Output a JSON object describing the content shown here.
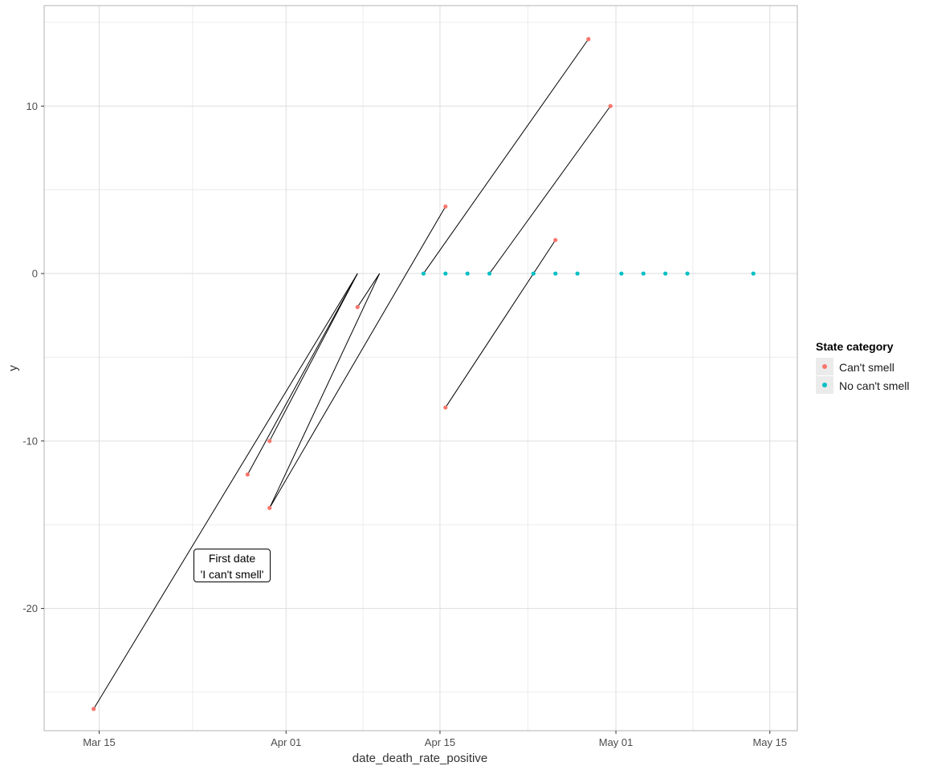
{
  "chart_data": {
    "type": "scatter",
    "xlabel": "date_death_rate_positive",
    "ylabel": "y",
    "x_ticks": [
      {
        "day": 75,
        "label": "Mar 15"
      },
      {
        "day": 92,
        "label": "Apr 01"
      },
      {
        "day": 106,
        "label": "Apr 15"
      },
      {
        "day": 122,
        "label": "May 01"
      },
      {
        "day": 136,
        "label": "May 15"
      }
    ],
    "y_ticks": [
      {
        "value": 10,
        "label": "10"
      },
      {
        "value": 0,
        "label": "0"
      },
      {
        "value": -10,
        "label": "-10"
      },
      {
        "value": -20,
        "label": "-20"
      }
    ],
    "xlim_day": [
      70,
      138.5
    ],
    "ylim": [
      -27.3,
      16.0
    ],
    "legend": {
      "title": "State category",
      "items": [
        {
          "label": "Can't smell",
          "color": "#F8766D"
        },
        {
          "label": "No can't smell",
          "color": "#00BFC4"
        }
      ]
    },
    "annotation": {
      "line1": "First date",
      "line2": "'I can't smell'"
    },
    "series": [
      {
        "name": "Can't smell",
        "color": "#F8766D",
        "points": [
          {
            "day": 74.5,
            "y": -26
          },
          {
            "day": 88.5,
            "y": -12
          },
          {
            "day": 90.5,
            "y": -10
          },
          {
            "day": 90.5,
            "y": -14
          },
          {
            "day": 98.5,
            "y": -2
          },
          {
            "day": 106.5,
            "y": 4
          },
          {
            "day": 106.5,
            "y": -8
          },
          {
            "day": 116.5,
            "y": 2
          },
          {
            "day": 119.5,
            "y": 14
          },
          {
            "day": 121.5,
            "y": 10
          }
        ]
      },
      {
        "name": "No can't smell",
        "color": "#00BFC4",
        "points": [
          {
            "day": 104.5,
            "y": 0
          },
          {
            "day": 106.5,
            "y": 0
          },
          {
            "day": 108.5,
            "y": 0
          },
          {
            "day": 110.5,
            "y": 0
          },
          {
            "day": 114.5,
            "y": 0
          },
          {
            "day": 116.5,
            "y": 0
          },
          {
            "day": 118.5,
            "y": 0
          },
          {
            "day": 122.5,
            "y": 0
          },
          {
            "day": 124.5,
            "y": 0
          },
          {
            "day": 126.5,
            "y": 0
          },
          {
            "day": 128.5,
            "y": 0
          },
          {
            "day": 134.5,
            "y": 0
          }
        ]
      }
    ],
    "segments": [
      {
        "from": [
          74.5,
          -26
        ],
        "to": [
          98.5,
          0
        ]
      },
      {
        "from": [
          88.5,
          -12
        ],
        "to": [
          98.5,
          0
        ]
      },
      {
        "from": [
          90.5,
          -10
        ],
        "to": [
          98.5,
          0
        ]
      },
      {
        "from": [
          90.5,
          -14
        ],
        "to": [
          100.5,
          0
        ]
      },
      {
        "from": [
          98.5,
          -2
        ],
        "to": [
          100.5,
          0
        ]
      },
      {
        "from": [
          104.5,
          0
        ],
        "to": [
          119.5,
          14
        ]
      },
      {
        "from": [
          110.5,
          0
        ],
        "to": [
          121.5,
          10
        ]
      },
      {
        "from": [
          106.5,
          -8
        ],
        "to": [
          116.5,
          2
        ]
      },
      {
        "from": [
          106.5,
          4
        ],
        "to": [
          90.5,
          -14
        ]
      }
    ]
  }
}
